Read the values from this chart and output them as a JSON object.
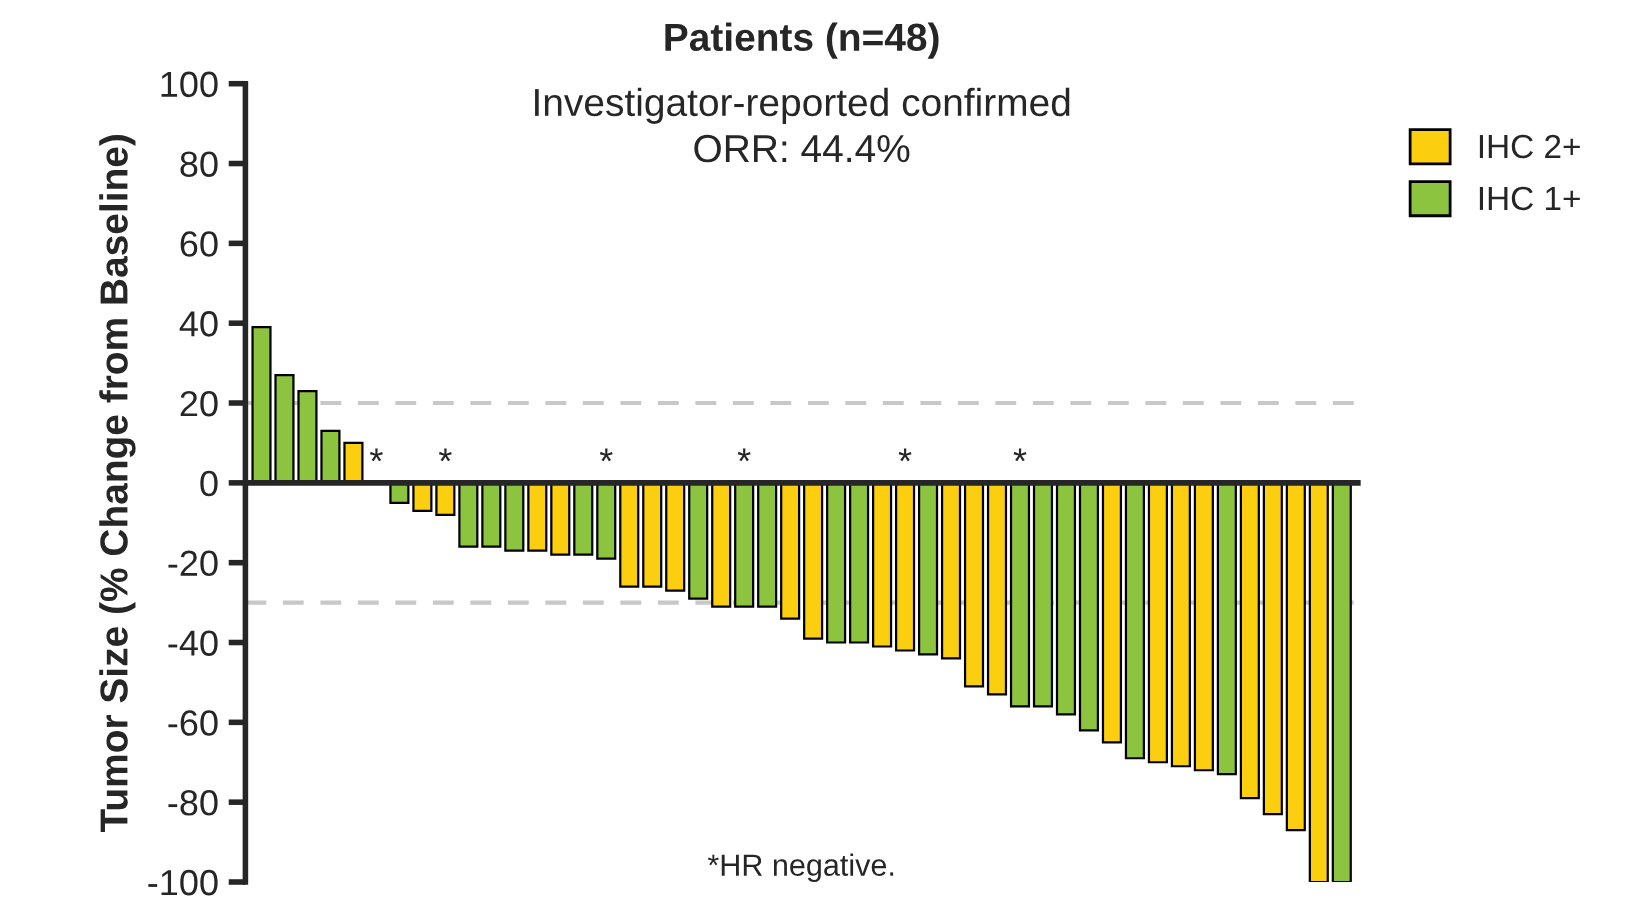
{
  "chart_data": {
    "type": "bar",
    "title": "Patients (n=48)",
    "subtitle": "Investigator-reported confirmed\nORR: 44.4%",
    "ylabel": "Tumor Size (% Change from Baseline)",
    "categories": [
      null,
      null,
      null,
      null,
      null,
      null,
      null,
      null,
      null,
      null,
      null,
      null,
      null,
      null,
      null,
      null,
      null,
      null,
      null,
      null,
      null,
      null,
      null,
      null,
      null,
      null,
      null,
      null,
      null,
      null,
      null,
      null,
      null,
      null,
      null,
      null,
      null,
      null,
      null,
      null,
      null,
      null,
      null,
      null,
      null,
      null,
      null,
      null
    ],
    "series": [
      {
        "name": "IHC 2+",
        "color": "#fcce10",
        "values": [
          null,
          null,
          null,
          null,
          10,
          null,
          null,
          -7,
          -8,
          null,
          null,
          null,
          -17,
          -18,
          null,
          null,
          -26,
          -26,
          -27,
          null,
          -31,
          null,
          null,
          -34,
          -39,
          null,
          null,
          -41,
          -42,
          null,
          -44,
          -51,
          -53,
          null,
          null,
          null,
          null,
          -65,
          null,
          -70,
          -71,
          -72,
          null,
          -79,
          -83,
          -87,
          -100,
          null
        ],
        "value_labels": [
          null,
          null,
          null,
          null,
          null,
          null,
          null,
          null,
          "*",
          null,
          null,
          null,
          null,
          null,
          null,
          null,
          null,
          null,
          null,
          null,
          null,
          null,
          null,
          null,
          null,
          null,
          null,
          null,
          "*",
          null,
          null,
          null,
          null,
          null,
          null,
          null,
          null,
          null,
          null,
          null,
          null,
          null,
          null,
          null,
          null,
          null,
          null,
          null
        ]
      },
      {
        "name": "IHC 1+",
        "color": "#8cc43f",
        "values": [
          39,
          27,
          23,
          13,
          null,
          0,
          -5,
          null,
          null,
          -16,
          -16,
          -17,
          null,
          null,
          -18,
          -19,
          null,
          null,
          null,
          -29,
          null,
          -31,
          -31,
          null,
          null,
          -40,
          -40,
          null,
          null,
          -43,
          null,
          null,
          null,
          -56,
          -56,
          -58,
          -62,
          null,
          -69,
          null,
          null,
          null,
          -73,
          null,
          null,
          null,
          null,
          -100
        ],
        "value_labels": [
          null,
          null,
          null,
          null,
          null,
          "*",
          null,
          null,
          null,
          null,
          null,
          null,
          null,
          null,
          null,
          "*",
          null,
          null,
          null,
          null,
          null,
          "*",
          null,
          null,
          null,
          null,
          null,
          null,
          null,
          null,
          null,
          null,
          null,
          "*",
          null,
          null,
          null,
          null,
          null,
          null,
          null,
          null,
          null,
          null,
          null,
          null,
          null,
          null
        ]
      }
    ],
    "ylim": [
      -100,
      100
    ],
    "yticks": [
      -100,
      -80,
      -60,
      -40,
      -20,
      0,
      20,
      40,
      60,
      80,
      100
    ],
    "ref_lines": [
      {
        "axis": "y",
        "value": 20,
        "color": "#c8c8c8",
        "line_style": "dashed"
      },
      {
        "axis": "y",
        "value": -30,
        "color": "#c8c8c8",
        "line_style": "dashed"
      }
    ],
    "annotations": [
      "*HR negative."
    ],
    "legend": "right",
    "grid": false
  }
}
